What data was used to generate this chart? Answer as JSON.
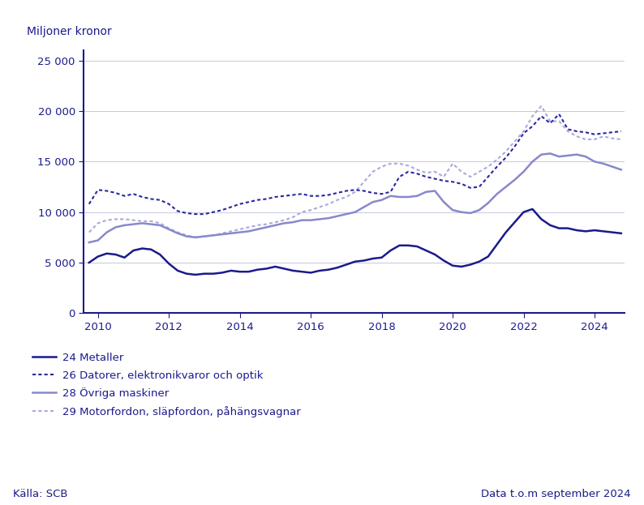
{
  "title_ylabel": "Miljoner kronor",
  "source_left": "Källa: SCB",
  "source_right": "Data t.o.m september 2024",
  "ylim": [
    0,
    26000
  ],
  "yticks": [
    0,
    5000,
    10000,
    15000,
    20000,
    25000
  ],
  "xlabel_years": [
    2010,
    2012,
    2014,
    2016,
    2018,
    2020,
    2022,
    2024
  ],
  "color_24": "#1a1a8c",
  "color_26": "#2828a0",
  "color_28": "#8888cc",
  "color_29": "#aaaadd",
  "legend": [
    "24 Metaller",
    "26 Datorer, elektronikvaror och optik",
    "28 Övriga maskiner",
    "29 Motorfordon, släpfordon, påhängsvagnar"
  ],
  "series_24_x": [
    2009.75,
    2010.0,
    2010.25,
    2010.5,
    2010.75,
    2011.0,
    2011.25,
    2011.5,
    2011.75,
    2012.0,
    2012.25,
    2012.5,
    2012.75,
    2013.0,
    2013.25,
    2013.5,
    2013.75,
    2014.0,
    2014.25,
    2014.5,
    2014.75,
    2015.0,
    2015.25,
    2015.5,
    2015.75,
    2016.0,
    2016.25,
    2016.5,
    2016.75,
    2017.0,
    2017.25,
    2017.5,
    2017.75,
    2018.0,
    2018.25,
    2018.5,
    2018.75,
    2019.0,
    2019.25,
    2019.5,
    2019.75,
    2020.0,
    2020.25,
    2020.5,
    2020.75,
    2021.0,
    2021.25,
    2021.5,
    2021.75,
    2022.0,
    2022.25,
    2022.5,
    2022.75,
    2023.0,
    2023.25,
    2023.5,
    2023.75,
    2024.0,
    2024.25,
    2024.5,
    2024.75
  ],
  "series_24_y": [
    5000,
    5600,
    5900,
    5800,
    5500,
    6200,
    6400,
    6300,
    5800,
    4900,
    4200,
    3900,
    3800,
    3900,
    3900,
    4000,
    4200,
    4100,
    4100,
    4300,
    4400,
    4600,
    4400,
    4200,
    4100,
    4000,
    4200,
    4300,
    4500,
    4800,
    5100,
    5200,
    5400,
    5500,
    6200,
    6700,
    6700,
    6600,
    6200,
    5800,
    5200,
    4700,
    4600,
    4800,
    5100,
    5600,
    6800,
    8000,
    9000,
    10000,
    10300,
    9300,
    8700,
    8400,
    8400,
    8200,
    8100,
    8200,
    8100,
    8000,
    7900
  ],
  "series_26_x": [
    2009.75,
    2010.0,
    2010.25,
    2010.5,
    2010.75,
    2011.0,
    2011.25,
    2011.5,
    2011.75,
    2012.0,
    2012.25,
    2012.5,
    2012.75,
    2013.0,
    2013.25,
    2013.5,
    2013.75,
    2014.0,
    2014.25,
    2014.5,
    2014.75,
    2015.0,
    2015.25,
    2015.5,
    2015.75,
    2016.0,
    2016.25,
    2016.5,
    2016.75,
    2017.0,
    2017.25,
    2017.5,
    2017.75,
    2018.0,
    2018.25,
    2018.5,
    2018.75,
    2019.0,
    2019.25,
    2019.5,
    2019.75,
    2020.0,
    2020.25,
    2020.5,
    2020.75,
    2021.0,
    2021.25,
    2021.5,
    2021.75,
    2022.0,
    2022.25,
    2022.5,
    2022.75,
    2023.0,
    2023.25,
    2023.5,
    2023.75,
    2024.0,
    2024.25,
    2024.5,
    2024.75
  ],
  "series_26_y": [
    10800,
    12200,
    12100,
    11900,
    11600,
    11800,
    11500,
    11300,
    11200,
    10800,
    10100,
    9900,
    9800,
    9800,
    10000,
    10200,
    10500,
    10800,
    11000,
    11200,
    11300,
    11500,
    11600,
    11700,
    11800,
    11600,
    11600,
    11700,
    11900,
    12100,
    12200,
    12100,
    11900,
    11800,
    12000,
    13500,
    14000,
    13800,
    13500,
    13300,
    13100,
    13000,
    12800,
    12400,
    12500,
    13500,
    14500,
    15400,
    16500,
    17800,
    18500,
    19500,
    18800,
    19700,
    18200,
    18000,
    17900,
    17700,
    17800,
    17900,
    18000
  ],
  "series_28_x": [
    2009.75,
    2010.0,
    2010.25,
    2010.5,
    2010.75,
    2011.0,
    2011.25,
    2011.5,
    2011.75,
    2012.0,
    2012.25,
    2012.5,
    2012.75,
    2013.0,
    2013.25,
    2013.5,
    2013.75,
    2014.0,
    2014.25,
    2014.5,
    2014.75,
    2015.0,
    2015.25,
    2015.5,
    2015.75,
    2016.0,
    2016.25,
    2016.5,
    2016.75,
    2017.0,
    2017.25,
    2017.5,
    2017.75,
    2018.0,
    2018.25,
    2018.5,
    2018.75,
    2019.0,
    2019.25,
    2019.5,
    2019.75,
    2020.0,
    2020.25,
    2020.5,
    2020.75,
    2021.0,
    2021.25,
    2021.5,
    2021.75,
    2022.0,
    2022.25,
    2022.5,
    2022.75,
    2023.0,
    2023.25,
    2023.5,
    2023.75,
    2024.0,
    2024.25,
    2024.5,
    2024.75
  ],
  "series_28_y": [
    7000,
    7200,
    8000,
    8500,
    8700,
    8800,
    8900,
    8800,
    8700,
    8300,
    7900,
    7600,
    7500,
    7600,
    7700,
    7800,
    7900,
    8000,
    8100,
    8300,
    8500,
    8700,
    8900,
    9000,
    9200,
    9200,
    9300,
    9400,
    9600,
    9800,
    10000,
    10500,
    11000,
    11200,
    11600,
    11500,
    11500,
    11600,
    12000,
    12100,
    11000,
    10200,
    10000,
    9900,
    10200,
    10900,
    11800,
    12500,
    13200,
    14000,
    15000,
    15700,
    15800,
    15500,
    15600,
    15700,
    15500,
    15000,
    14800,
    14500,
    14200
  ],
  "series_29_x": [
    2009.75,
    2010.0,
    2010.25,
    2010.5,
    2010.75,
    2011.0,
    2011.25,
    2011.5,
    2011.75,
    2012.0,
    2012.25,
    2012.5,
    2012.75,
    2013.0,
    2013.25,
    2013.5,
    2013.75,
    2014.0,
    2014.25,
    2014.5,
    2014.75,
    2015.0,
    2015.25,
    2015.5,
    2015.75,
    2016.0,
    2016.25,
    2016.5,
    2016.75,
    2017.0,
    2017.25,
    2017.5,
    2017.75,
    2018.0,
    2018.25,
    2018.5,
    2018.75,
    2019.0,
    2019.25,
    2019.5,
    2019.75,
    2020.0,
    2020.25,
    2020.5,
    2020.75,
    2021.0,
    2021.25,
    2021.5,
    2021.75,
    2022.0,
    2022.25,
    2022.5,
    2022.75,
    2023.0,
    2023.25,
    2023.5,
    2023.75,
    2024.0,
    2024.25,
    2024.5,
    2024.75
  ],
  "series_29_y": [
    8000,
    8900,
    9200,
    9300,
    9300,
    9200,
    9100,
    9100,
    8900,
    8400,
    8000,
    7700,
    7500,
    7600,
    7700,
    7900,
    8100,
    8300,
    8500,
    8700,
    8800,
    9000,
    9200,
    9500,
    10000,
    10200,
    10500,
    10800,
    11200,
    11500,
    12000,
    13000,
    14000,
    14500,
    14800,
    14800,
    14600,
    14200,
    13900,
    14000,
    13500,
    14800,
    14000,
    13500,
    14000,
    14500,
    15200,
    16000,
    17000,
    18000,
    19500,
    20500,
    19000,
    19000,
    18000,
    17500,
    17200,
    17200,
    17500,
    17300,
    17200
  ]
}
